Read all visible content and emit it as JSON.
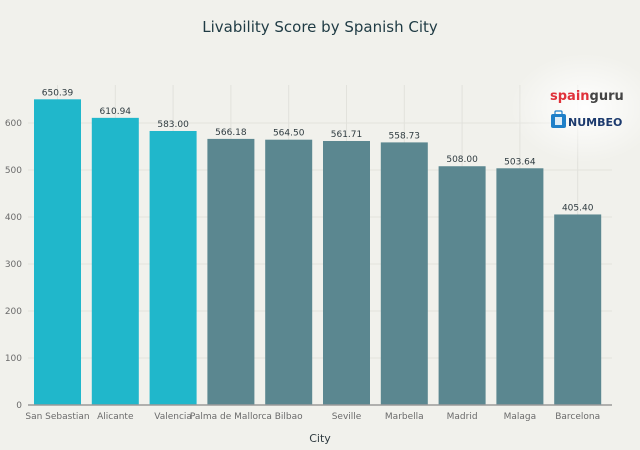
{
  "chart_data": {
    "type": "bar",
    "title": "Livability Score by Spanish City",
    "xlabel": "City",
    "ylabel": "",
    "categories": [
      "San Sebastian",
      "Alicante",
      "Valencia",
      "Palma de Mallorca",
      "Bilbao",
      "Seville",
      "Marbella",
      "Madrid",
      "Malaga",
      "Barcelona"
    ],
    "values": [
      650.39,
      610.94,
      583.0,
      566.18,
      564.5,
      561.71,
      558.73,
      508.0,
      503.64,
      405.4
    ],
    "data_labels": [
      "650.39",
      "610.94",
      "583.00",
      "566.18",
      "564.50",
      "561.71",
      "558.73",
      "508.00",
      "503.64",
      "405.40"
    ],
    "highlight_count": 3,
    "ylim": [
      0,
      680
    ],
    "yticks": [
      0,
      100,
      200,
      300,
      400,
      500,
      600
    ],
    "grid": true,
    "colors": {
      "highlight": "#20b7cb",
      "default": "#5b8790",
      "background": "#f1f1ec",
      "grid": "#e2e2dc",
      "axis": "#9a9a9a"
    }
  },
  "logos": {
    "spainguru": {
      "part1": "spain",
      "part2": "guru",
      "color1": "#e0313a",
      "color2": "#444444"
    },
    "numbeo": {
      "text": "NUMBEO",
      "color": "#1c3a6e"
    }
  }
}
